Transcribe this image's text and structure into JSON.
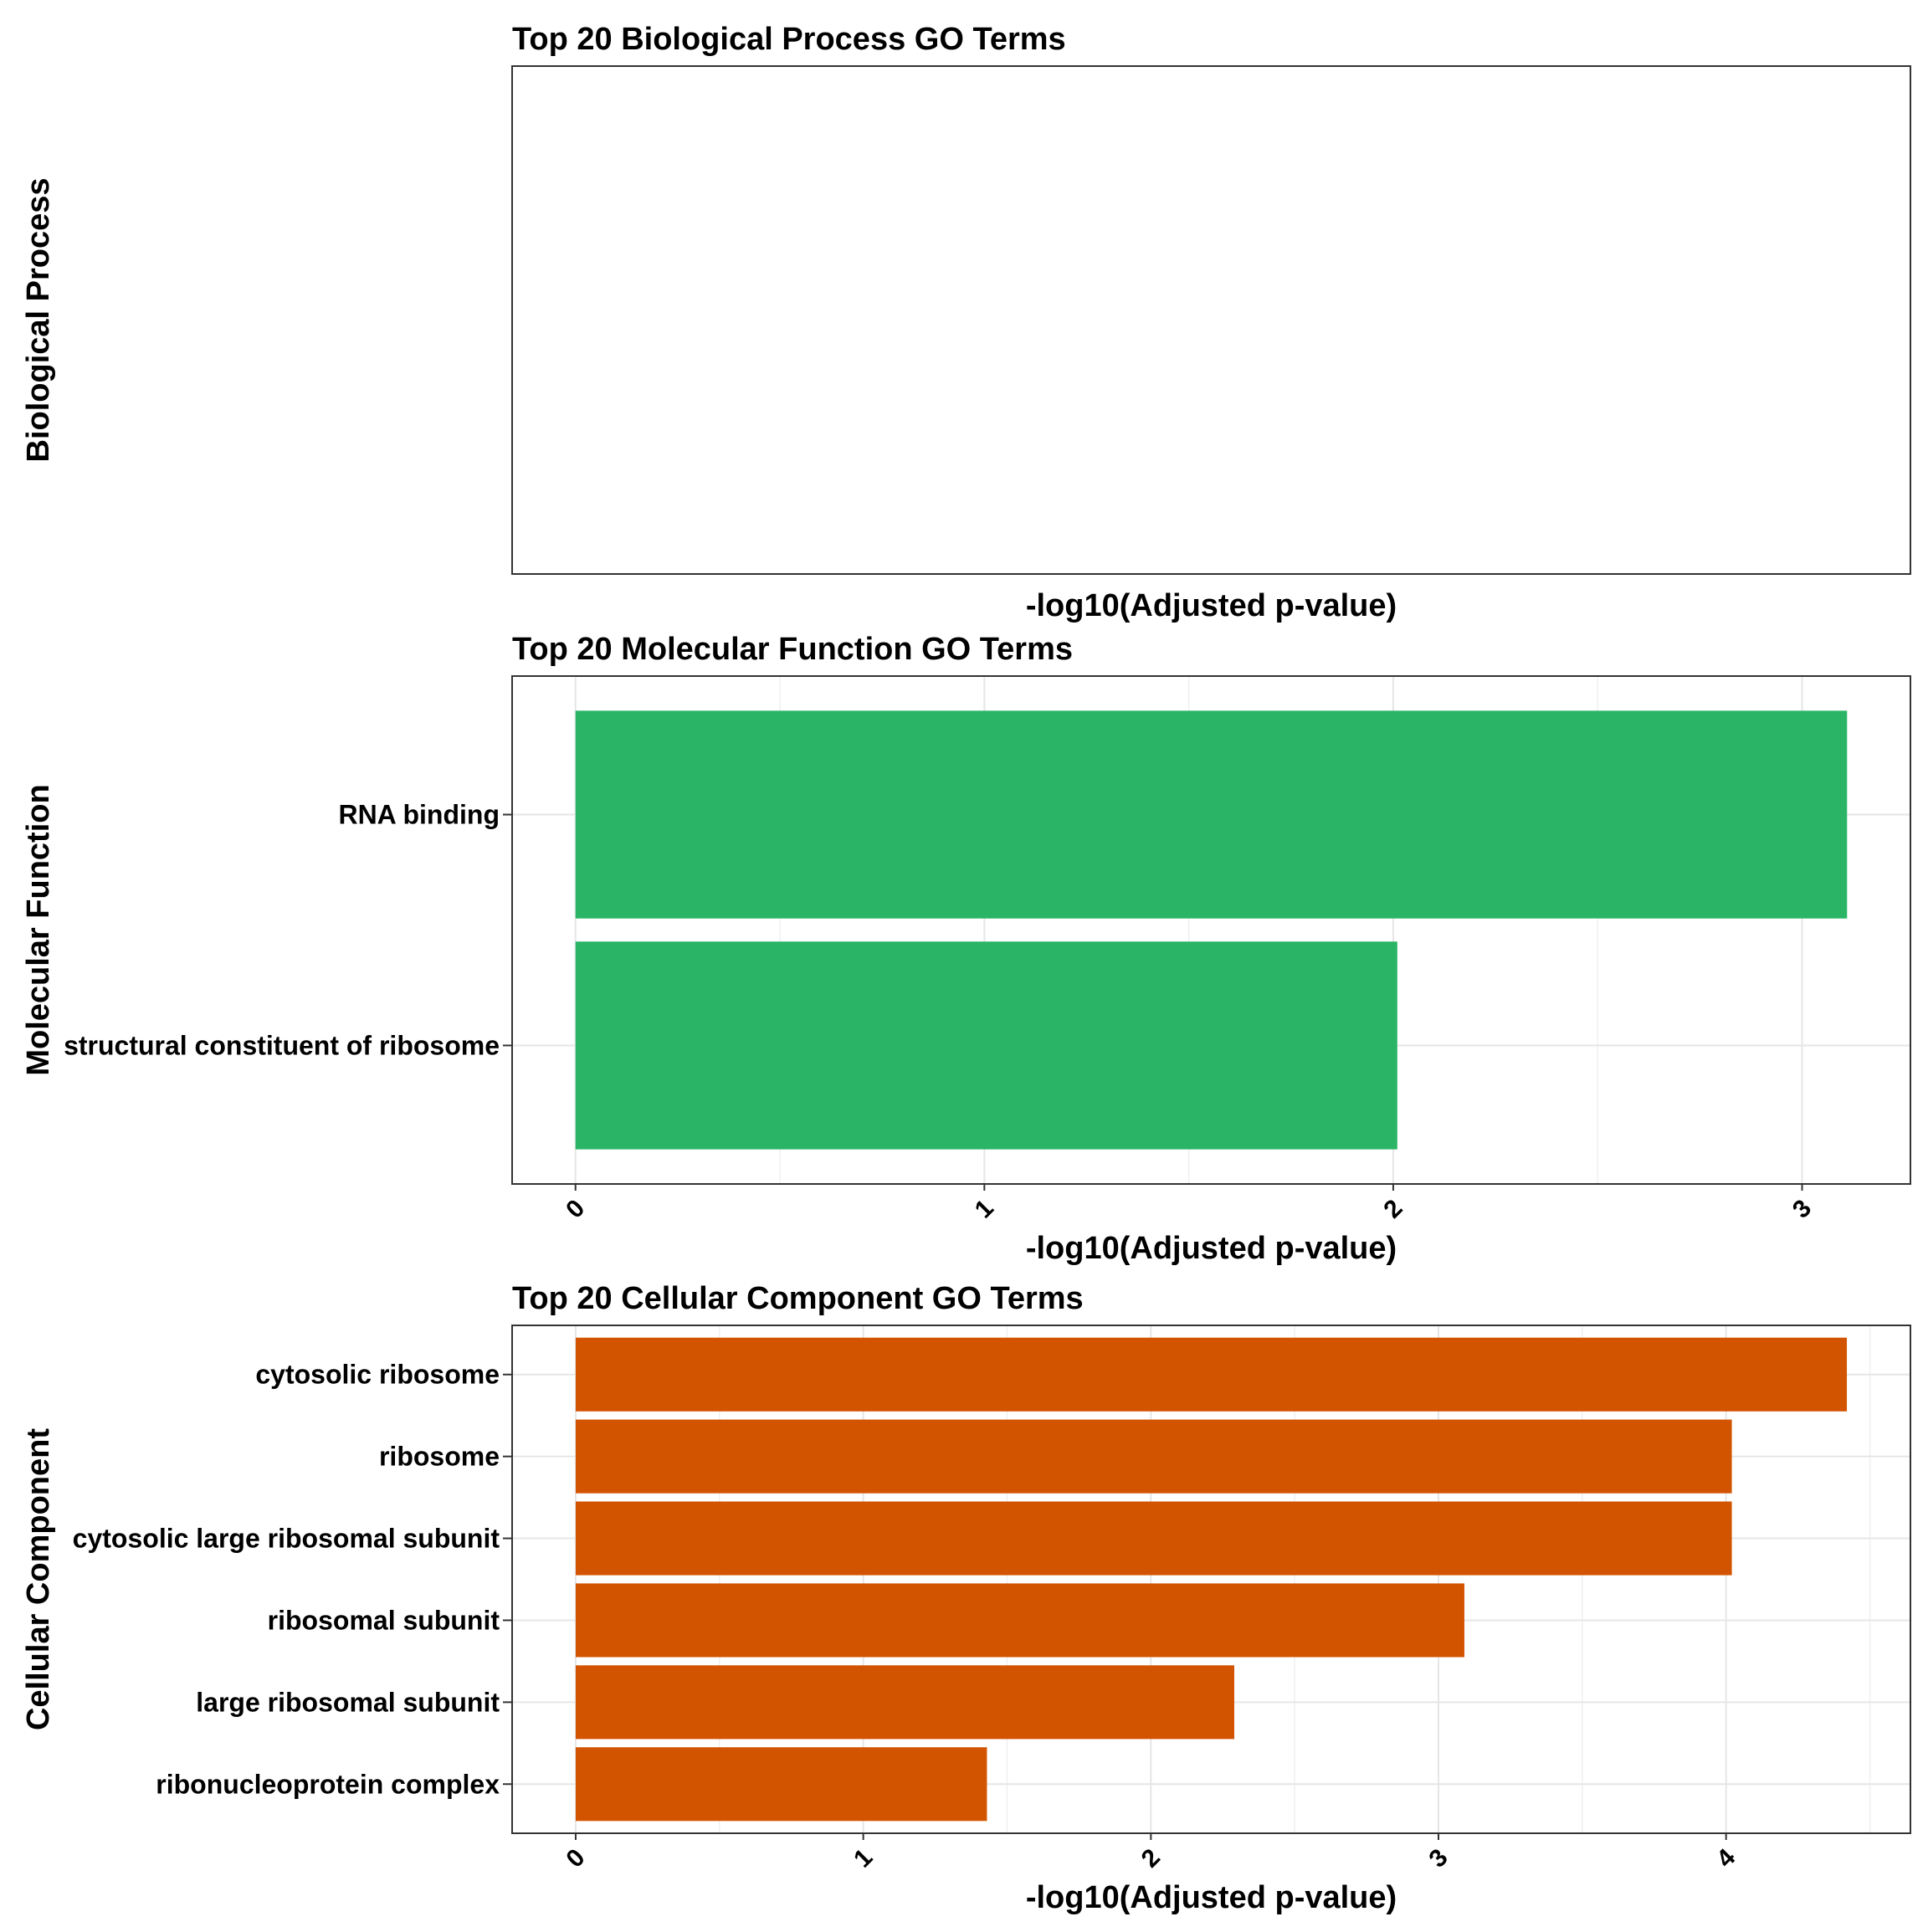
{
  "chart_data": [
    {
      "type": "bar",
      "orientation": "horizontal",
      "title": "Top 20 Biological Process GO Terms",
      "ylabel": "Biological Process",
      "xlabel": "-log10(Adjusted p-value)",
      "categories": [],
      "values": [],
      "color": "#ffffff",
      "xlim": null,
      "xticks": [],
      "grid": false
    },
    {
      "type": "bar",
      "orientation": "horizontal",
      "title": "Top 20 Molecular Function GO Terms",
      "ylabel": "Molecular Function",
      "xlabel": "-log10(Adjusted p-value)",
      "categories": [
        "RNA binding",
        "structural constituent of ribosome"
      ],
      "values": [
        3.11,
        2.01
      ],
      "color": "#2AB566",
      "xlim": [
        -0.155,
        3.265
      ],
      "xticks": [
        "0",
        "1",
        "2",
        "3"
      ],
      "grid": true
    },
    {
      "type": "bar",
      "orientation": "horizontal",
      "title": "Top 20 Cellular Component GO Terms",
      "ylabel": "Cellular Component",
      "xlabel": "-log10(Adjusted p-value)",
      "categories": [
        "cytosolic ribosome",
        "ribosome",
        "cytosolic large ribosomal subunit",
        "ribosomal subunit",
        "large ribosomal subunit",
        "ribonucleoprotein complex"
      ],
      "values": [
        4.42,
        4.02,
        4.02,
        3.09,
        2.29,
        1.43
      ],
      "color": "#D35400",
      "xlim": [
        -0.221,
        4.641
      ],
      "xticks": [
        "0",
        "1",
        "2",
        "3",
        "4"
      ],
      "grid": true
    }
  ]
}
